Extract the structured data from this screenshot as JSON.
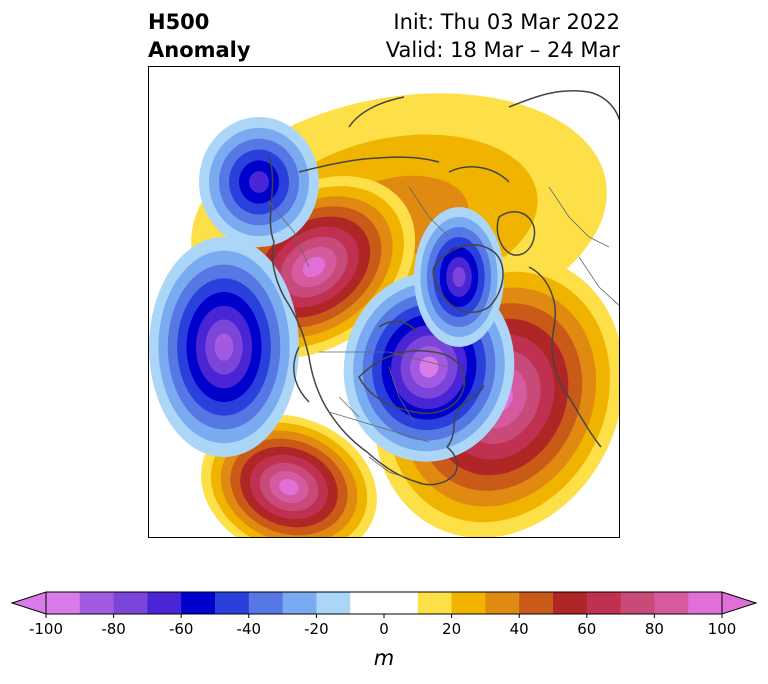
{
  "title": {
    "left_line1": "H500",
    "left_line2": "Anomaly",
    "right_line1": "Init: Thu 03 Mar 2022",
    "right_line2": "Valid: 18 Mar – 24 Mar"
  },
  "colorbar": {
    "ticks": [
      "-100",
      "-80",
      "-60",
      "-40",
      "-20",
      "0",
      "20",
      "40",
      "60",
      "80",
      "100"
    ],
    "unit_label": "m",
    "colors": [
      "#d97be8",
      "#a25be0",
      "#7a45d8",
      "#4a25d6",
      "#0000cc",
      "#2a40dc",
      "#5578e4",
      "#7aaaf0",
      "#acd6f8",
      "#ffffff",
      "#ffffff",
      "#fde047",
      "#f0b400",
      "#e08a12",
      "#c95a18",
      "#b02525",
      "#c03050",
      "#c84a78",
      "#d55aa0",
      "#e070d8"
    ]
  },
  "anomaly_centers": [
    {
      "name": "canada-ridge",
      "sign": "positive"
    },
    {
      "name": "hudson-trough",
      "sign": "negative"
    },
    {
      "name": "atlantic-ridge",
      "sign": "positive"
    },
    {
      "name": "pacific-trough",
      "sign": "negative"
    },
    {
      "name": "mexico-ridge",
      "sign": "positive"
    },
    {
      "name": "siberia-trough",
      "sign": "negative"
    }
  ]
}
